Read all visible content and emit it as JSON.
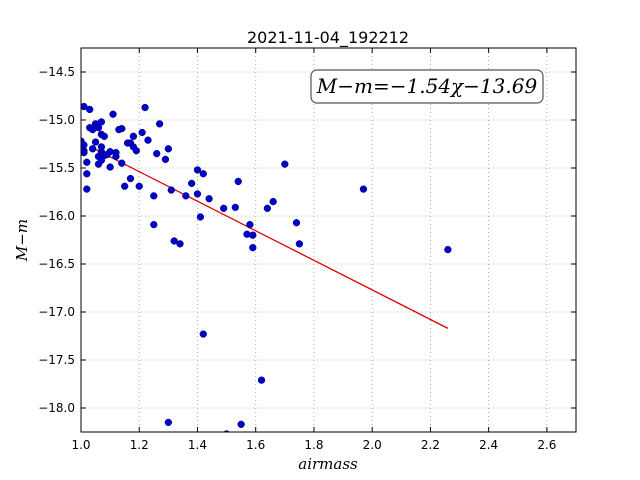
{
  "chart_data": {
    "type": "scatter",
    "title": "2021-11-04_192212",
    "xlabel": "airmass",
    "ylabel": "M−m",
    "xlim": [
      1.0,
      2.7
    ],
    "ylim": [
      -18.25,
      -14.25
    ],
    "y_inverted": true,
    "x_ticks": [
      "1.0",
      "1.2",
      "1.4",
      "1.6",
      "1.8",
      "2.0",
      "2.2",
      "2.4",
      "2.6"
    ],
    "y_ticks": [
      "−14.5",
      "−15.0",
      "−15.5",
      "−16.0",
      "−16.5",
      "−17.0",
      "−17.5",
      "−18.0"
    ],
    "grid": true,
    "annotation": "M−m=−1.54χ−13.69",
    "annotation_position": "top-right",
    "point_color": "#0000cc",
    "fit_color": "#dd0000",
    "fit": {
      "slope": -1.54,
      "intercept": -13.69,
      "x_range": [
        1.03,
        2.26
      ]
    },
    "points": [
      [
        1.0,
        -15.22
      ],
      [
        1.01,
        -15.32
      ],
      [
        1.01,
        -15.26
      ],
      [
        1.01,
        -15.34
      ],
      [
        1.01,
        -14.86
      ],
      [
        1.02,
        -15.72
      ],
      [
        1.02,
        -15.56
      ],
      [
        1.02,
        -15.44
      ],
      [
        1.03,
        -14.89
      ],
      [
        1.03,
        -15.08
      ],
      [
        1.04,
        -15.1
      ],
      [
        1.04,
        -15.3
      ],
      [
        1.05,
        -15.23
      ],
      [
        1.05,
        -15.04
      ],
      [
        1.06,
        -15.08
      ],
      [
        1.06,
        -15.38
      ],
      [
        1.06,
        -15.46
      ],
      [
        1.07,
        -15.42
      ],
      [
        1.07,
        -15.33
      ],
      [
        1.07,
        -15.28
      ],
      [
        1.07,
        -15.15
      ],
      [
        1.07,
        -15.02
      ],
      [
        1.08,
        -15.17
      ],
      [
        1.08,
        -15.37
      ],
      [
        1.09,
        -15.36
      ],
      [
        1.1,
        -15.49
      ],
      [
        1.1,
        -15.33
      ],
      [
        1.11,
        -14.94
      ],
      [
        1.12,
        -15.38
      ],
      [
        1.12,
        -15.34
      ],
      [
        1.13,
        -15.1
      ],
      [
        1.14,
        -15.09
      ],
      [
        1.14,
        -15.45
      ],
      [
        1.15,
        -15.69
      ],
      [
        1.16,
        -15.24
      ],
      [
        1.17,
        -15.24
      ],
      [
        1.17,
        -15.61
      ],
      [
        1.18,
        -15.17
      ],
      [
        1.18,
        -15.28
      ],
      [
        1.19,
        -15.32
      ],
      [
        1.2,
        -15.69
      ],
      [
        1.21,
        -15.13
      ],
      [
        1.22,
        -14.87
      ],
      [
        1.23,
        -15.21
      ],
      [
        1.25,
        -15.79
      ],
      [
        1.25,
        -16.09
      ],
      [
        1.26,
        -15.35
      ],
      [
        1.27,
        -15.04
      ],
      [
        1.29,
        -15.41
      ],
      [
        1.3,
        -15.3
      ],
      [
        1.3,
        -18.15
      ],
      [
        1.31,
        -15.73
      ],
      [
        1.32,
        -16.26
      ],
      [
        1.34,
        -16.29
      ],
      [
        1.36,
        -15.79
      ],
      [
        1.38,
        -15.66
      ],
      [
        1.4,
        -15.52
      ],
      [
        1.4,
        -15.77
      ],
      [
        1.41,
        -16.01
      ],
      [
        1.42,
        -15.56
      ],
      [
        1.42,
        -17.23
      ],
      [
        1.44,
        -15.82
      ],
      [
        1.49,
        -15.92
      ],
      [
        1.5,
        -18.27
      ],
      [
        1.53,
        -15.91
      ],
      [
        1.54,
        -15.64
      ],
      [
        1.55,
        -18.17
      ],
      [
        1.57,
        -16.19
      ],
      [
        1.58,
        -16.09
      ],
      [
        1.59,
        -16.2
      ],
      [
        1.59,
        -16.33
      ],
      [
        1.62,
        -17.71
      ],
      [
        1.64,
        -15.92
      ],
      [
        1.66,
        -15.85
      ],
      [
        1.7,
        -15.46
      ],
      [
        1.74,
        -16.07
      ],
      [
        1.75,
        -16.29
      ],
      [
        1.97,
        -15.72
      ],
      [
        2.26,
        -16.35
      ]
    ]
  }
}
